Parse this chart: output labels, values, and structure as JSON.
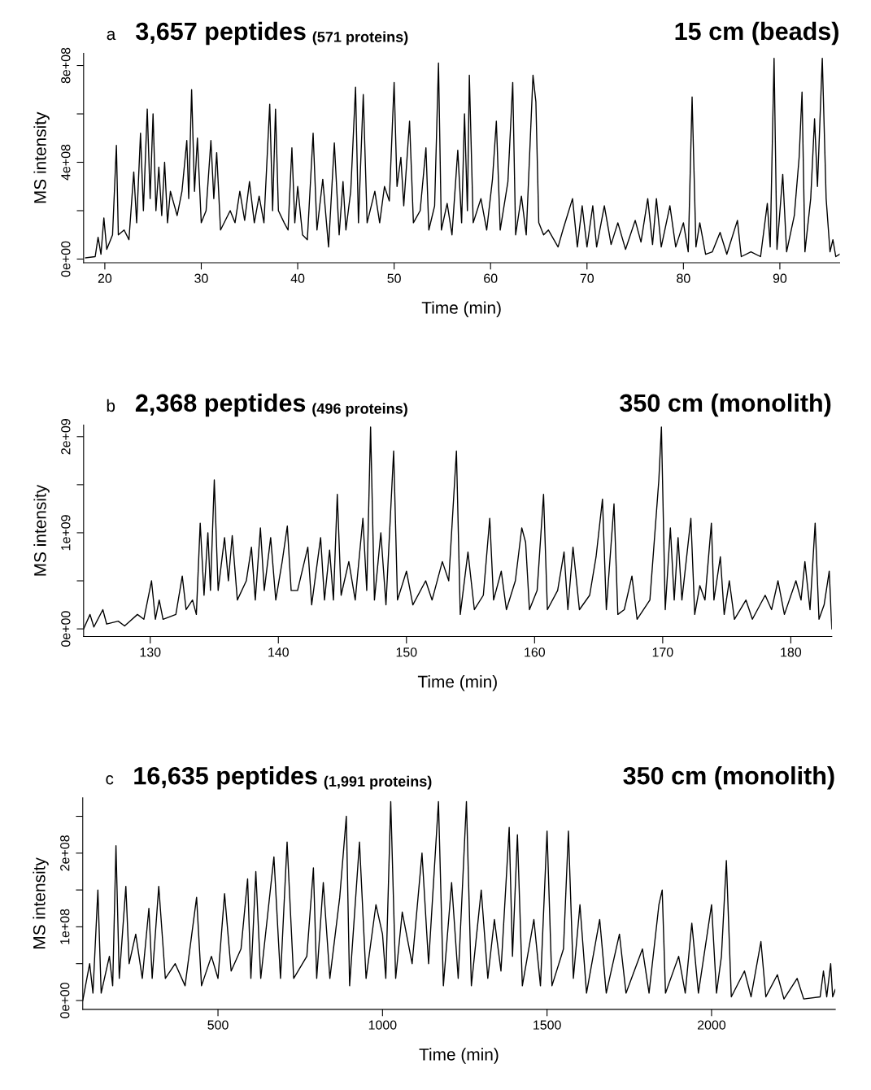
{
  "chart_data": [
    {
      "type": "line",
      "title": "3,657 peptides",
      "subtitle": "(571 proteins)",
      "annotations": [
        "a",
        "15 cm (beads)"
      ],
      "xlabel": "Time (min)",
      "ylabel": "MS intensity",
      "color": "#000000",
      "xlim": [
        17.8,
        96.2
      ],
      "ylim": [
        -15000000.0,
        850000000.0
      ],
      "xticks": [
        20,
        30,
        40,
        50,
        60,
        70,
        80,
        90
      ],
      "yticks": [
        {
          "value": 0,
          "label": "0e+00"
        },
        {
          "value": 200000000.0,
          "label": null
        },
        {
          "value": 400000000.0,
          "label": "4e+08"
        },
        {
          "value": 600000000.0,
          "label": null
        },
        {
          "value": 800000000.0,
          "label": "8e+08"
        }
      ],
      "x": [
        18.0,
        19.0,
        19.3,
        19.6,
        19.9,
        20.2,
        20.8,
        21.2,
        21.4,
        22.0,
        22.5,
        23.0,
        23.3,
        23.7,
        24.0,
        24.4,
        24.7,
        25.0,
        25.3,
        25.6,
        25.9,
        26.2,
        26.5,
        26.8,
        27.5,
        28.0,
        28.5,
        28.7,
        29.0,
        29.3,
        29.6,
        30.0,
        30.5,
        31.0,
        31.3,
        31.6,
        32.0,
        33.0,
        33.5,
        34.0,
        34.5,
        35.0,
        35.5,
        36.0,
        36.5,
        37.1,
        37.4,
        37.7,
        38.0,
        38.6,
        39.0,
        39.4,
        39.7,
        40.0,
        40.5,
        41.0,
        41.6,
        42.0,
        42.6,
        43.2,
        43.8,
        44.3,
        44.7,
        45.0,
        45.5,
        46.0,
        46.3,
        46.8,
        47.2,
        48.0,
        48.5,
        49.0,
        49.5,
        50.0,
        50.3,
        50.7,
        51.0,
        51.6,
        52.0,
        52.7,
        53.3,
        53.6,
        54.2,
        54.6,
        54.9,
        55.5,
        56.0,
        56.6,
        57.0,
        57.3,
        57.6,
        57.8,
        58.2,
        59.0,
        59.6,
        60.2,
        60.6,
        61.0,
        61.8,
        62.3,
        62.6,
        63.2,
        63.7,
        64.4,
        64.7,
        65.0,
        65.5,
        66.0,
        67.0,
        67.5,
        68.5,
        69.0,
        69.5,
        70.0,
        70.6,
        71.0,
        71.8,
        72.5,
        73.2,
        74.0,
        75.0,
        75.6,
        76.3,
        76.8,
        77.2,
        77.7,
        78.6,
        79.2,
        80.0,
        80.5,
        80.9,
        81.3,
        81.7,
        82.3,
        83.0,
        83.8,
        84.5,
        85.6,
        86.0,
        87.0,
        88.0,
        88.7,
        89.0,
        89.4,
        89.7,
        90.3,
        90.7,
        91.5,
        92.0,
        92.3,
        92.6,
        93.2,
        93.6,
        93.9,
        94.4,
        94.8,
        95.2,
        95.5,
        95.8,
        96.2
      ],
      "values": [
        5000000.0,
        10000000.0,
        90000000.0,
        20000000.0,
        170000000.0,
        40000000.0,
        100000000.0,
        470000000.0,
        100000000.0,
        120000000.0,
        80000000.0,
        360000000.0,
        150000000.0,
        520000000.0,
        200000000.0,
        620000000.0,
        250000000.0,
        600000000.0,
        200000000.0,
        380000000.0,
        180000000.0,
        400000000.0,
        150000000.0,
        280000000.0,
        180000000.0,
        280000000.0,
        490000000.0,
        250000000.0,
        700000000.0,
        280000000.0,
        500000000.0,
        150000000.0,
        200000000.0,
        490000000.0,
        250000000.0,
        440000000.0,
        120000000.0,
        200000000.0,
        150000000.0,
        280000000.0,
        160000000.0,
        320000000.0,
        150000000.0,
        260000000.0,
        150000000.0,
        640000000.0,
        200000000.0,
        620000000.0,
        200000000.0,
        150000000.0,
        120000000.0,
        460000000.0,
        150000000.0,
        300000000.0,
        100000000.0,
        80000000.0,
        520000000.0,
        120000000.0,
        330000000.0,
        50000000.0,
        480000000.0,
        100000000.0,
        320000000.0,
        120000000.0,
        280000000.0,
        710000000.0,
        150000000.0,
        680000000.0,
        150000000.0,
        280000000.0,
        150000000.0,
        300000000.0,
        240000000.0,
        730000000.0,
        300000000.0,
        420000000.0,
        220000000.0,
        570000000.0,
        150000000.0,
        200000000.0,
        460000000.0,
        120000000.0,
        220000000.0,
        810000000.0,
        120000000.0,
        230000000.0,
        100000000.0,
        450000000.0,
        150000000.0,
        600000000.0,
        200000000.0,
        760000000.0,
        150000000.0,
        250000000.0,
        120000000.0,
        330000000.0,
        570000000.0,
        120000000.0,
        320000000.0,
        730000000.0,
        100000000.0,
        260000000.0,
        100000000.0,
        760000000.0,
        650000000.0,
        150000000.0,
        100000000.0,
        120000000.0,
        50000000.0,
        120000000.0,
        250000000.0,
        50000000.0,
        220000000.0,
        50000000.0,
        220000000.0,
        50000000.0,
        220000000.0,
        60000000.0,
        150000000.0,
        40000000.0,
        160000000.0,
        70000000.0,
        250000000.0,
        60000000.0,
        250000000.0,
        50000000.0,
        220000000.0,
        50000000.0,
        150000000.0,
        30000000.0,
        670000000.0,
        50000000.0,
        150000000.0,
        20000000.0,
        30000000.0,
        110000000.0,
        20000000.0,
        160000000.0,
        10000000.0,
        30000000.0,
        10000000.0,
        230000000.0,
        50000000.0,
        830000000.0,
        40000000.0,
        350000000.0,
        30000000.0,
        180000000.0,
        420000000.0,
        690000000.0,
        30000000.0,
        250000000.0,
        580000000.0,
        300000000.0,
        830000000.0,
        250000000.0,
        30000000.0,
        80000000.0,
        10000000.0,
        20000000.0
      ]
    },
    {
      "type": "line",
      "title": "2,368 peptides",
      "subtitle": "(496 proteins)",
      "annotations": [
        "b",
        "350 cm (monolith)"
      ],
      "xlabel": "Time (min)",
      "ylabel": "MS intensity",
      "color": "#000000",
      "xlim": [
        124.8,
        183.2
      ],
      "ylim": [
        -80000000.0,
        2120000000.0
      ],
      "xticks": [
        130,
        140,
        150,
        160,
        170,
        180
      ],
      "yticks": [
        {
          "value": 0,
          "label": "0e+00"
        },
        {
          "value": 500000000.0,
          "label": null
        },
        {
          "value": 1000000000.0,
          "label": "1e+09"
        },
        {
          "value": 1500000000.0,
          "label": null
        },
        {
          "value": 2000000000.0,
          "label": "2e+09"
        }
      ],
      "x": [
        124.8,
        125.3,
        125.6,
        126.3,
        126.6,
        127.5,
        128.0,
        129.0,
        129.5,
        130.1,
        130.4,
        130.7,
        131.0,
        132.0,
        132.5,
        132.8,
        133.3,
        133.6,
        133.9,
        134.2,
        134.5,
        134.7,
        135.0,
        135.3,
        135.8,
        136.1,
        136.4,
        136.8,
        137.5,
        137.9,
        138.2,
        138.6,
        138.9,
        139.4,
        139.8,
        140.3,
        140.7,
        141.0,
        141.5,
        142.3,
        142.6,
        143.3,
        143.6,
        144.0,
        144.3,
        144.6,
        144.9,
        145.5,
        146.0,
        146.6,
        146.9,
        147.2,
        147.5,
        148.0,
        148.4,
        149.0,
        149.3,
        150.0,
        150.5,
        151.5,
        152.0,
        152.8,
        153.3,
        153.9,
        154.2,
        154.8,
        155.3,
        156.0,
        156.5,
        156.8,
        157.4,
        157.8,
        158.5,
        159.0,
        159.3,
        159.6,
        160.2,
        160.7,
        161.0,
        161.8,
        162.3,
        162.6,
        163.0,
        163.5,
        164.3,
        164.8,
        165.3,
        165.6,
        166.2,
        166.5,
        167.0,
        167.6,
        168.0,
        169.0,
        169.7,
        169.9,
        170.2,
        170.6,
        170.9,
        171.2,
        171.5,
        172.2,
        172.5,
        172.9,
        173.3,
        173.8,
        174.0,
        174.5,
        174.8,
        175.2,
        175.6,
        176.5,
        177.0,
        178.0,
        178.5,
        179.0,
        179.5,
        180.4,
        180.8,
        181.1,
        181.5,
        181.9,
        182.2,
        182.6,
        183.0,
        183.2
      ],
      "values": [
        0,
        150000000.0,
        20000000.0,
        200000000.0,
        50000000.0,
        80000000.0,
        30000000.0,
        150000000.0,
        100000000.0,
        500000000.0,
        100000000.0,
        300000000.0,
        100000000.0,
        150000000.0,
        550000000.0,
        200000000.0,
        300000000.0,
        150000000.0,
        1100000000.0,
        350000000.0,
        1000000000.0,
        400000000.0,
        1550000000.0,
        400000000.0,
        950000000.0,
        500000000.0,
        970000000.0,
        300000000.0,
        500000000.0,
        850000000.0,
        300000000.0,
        1050000000.0,
        400000000.0,
        950000000.0,
        300000000.0,
        700000000.0,
        1070000000.0,
        400000000.0,
        400000000.0,
        850000000.0,
        250000000.0,
        950000000.0,
        300000000.0,
        820000000.0,
        300000000.0,
        1400000000.0,
        350000000.0,
        700000000.0,
        300000000.0,
        1150000000.0,
        400000000.0,
        2100000000.0,
        300000000.0,
        1000000000.0,
        250000000.0,
        1850000000.0,
        300000000.0,
        600000000.0,
        250000000.0,
        500000000.0,
        300000000.0,
        700000000.0,
        500000000.0,
        1850000000.0,
        150000000.0,
        800000000.0,
        200000000.0,
        350000000.0,
        1150000000.0,
        300000000.0,
        600000000.0,
        200000000.0,
        500000000.0,
        1050000000.0,
        900000000.0,
        200000000.0,
        400000000.0,
        1400000000.0,
        200000000.0,
        400000000.0,
        800000000.0,
        200000000.0,
        850000000.0,
        200000000.0,
        350000000.0,
        750000000.0,
        1350000000.0,
        200000000.0,
        1300000000.0,
        150000000.0,
        200000000.0,
        550000000.0,
        100000000.0,
        300000000.0,
        1550000000.0,
        2100000000.0,
        200000000.0,
        1050000000.0,
        300000000.0,
        950000000.0,
        300000000.0,
        1150000000.0,
        150000000.0,
        450000000.0,
        300000000.0,
        1100000000.0,
        300000000.0,
        750000000.0,
        150000000.0,
        500000000.0,
        100000000.0,
        300000000.0,
        100000000.0,
        350000000.0,
        200000000.0,
        500000000.0,
        150000000.0,
        500000000.0,
        300000000.0,
        700000000.0,
        200000000.0,
        1100000000.0,
        100000000.0,
        250000000.0,
        600000000.0,
        0
      ]
    },
    {
      "type": "line",
      "title": "16,635 peptides",
      "subtitle": "(1,991 proteins)",
      "annotations": [
        "c",
        "350 cm (monolith)"
      ],
      "xlabel": "Time (min)",
      "ylabel": "MS intensity",
      "color": "#000000",
      "xlim": [
        89,
        2376
      ],
      "ylim": [
        -12000000.0,
        275000000.0
      ],
      "xticks": [
        500,
        1000,
        1500,
        2000
      ],
      "yticks": [
        {
          "value": 0,
          "label": "0e+00"
        },
        {
          "value": 50000000.0,
          "label": null
        },
        {
          "value": 100000000.0,
          "label": "1e+08"
        },
        {
          "value": 150000000.0,
          "label": null
        },
        {
          "value": 200000000.0,
          "label": "2e+08"
        },
        {
          "value": 250000000.0,
          "label": null
        }
      ],
      "x": [
        89,
        110,
        120,
        135,
        145,
        170,
        180,
        190,
        200,
        220,
        230,
        250,
        270,
        290,
        300,
        320,
        340,
        370,
        400,
        435,
        450,
        480,
        500,
        520,
        540,
        570,
        590,
        600,
        615,
        630,
        670,
        690,
        710,
        730,
        770,
        790,
        800,
        820,
        840,
        870,
        890,
        900,
        930,
        950,
        980,
        1000,
        1010,
        1025,
        1040,
        1060,
        1090,
        1120,
        1140,
        1170,
        1185,
        1210,
        1230,
        1255,
        1270,
        1300,
        1320,
        1340,
        1360,
        1385,
        1395,
        1410,
        1425,
        1460,
        1480,
        1500,
        1515,
        1550,
        1565,
        1580,
        1600,
        1620,
        1660,
        1680,
        1720,
        1740,
        1790,
        1810,
        1840,
        1850,
        1860,
        1900,
        1920,
        1940,
        1960,
        2000,
        2015,
        2030,
        2045,
        2060,
        2100,
        2120,
        2150,
        2165,
        2200,
        2220,
        2260,
        2280,
        2330,
        2340,
        2350,
        2362,
        2368,
        2376
      ],
      "values": [
        0,
        50000000.0,
        10000000.0,
        150000000.0,
        10000000.0,
        60000000.0,
        20000000.0,
        210000000.0,
        30000000.0,
        155000000.0,
        50000000.0,
        90000000.0,
        30000000.0,
        125000000.0,
        30000000.0,
        155000000.0,
        30000000.0,
        50000000.0,
        20000000.0,
        140000000.0,
        20000000.0,
        60000000.0,
        30000000.0,
        145000000.0,
        40000000.0,
        70000000.0,
        165000000.0,
        30000000.0,
        175000000.0,
        30000000.0,
        195000000.0,
        30000000.0,
        215000000.0,
        30000000.0,
        60000000.0,
        180000000.0,
        30000000.0,
        160000000.0,
        30000000.0,
        140000000.0,
        250000000.0,
        20000000.0,
        215000000.0,
        30000000.0,
        130000000.0,
        90000000.0,
        30000000.0,
        270000000.0,
        30000000.0,
        120000000.0,
        50000000.0,
        200000000.0,
        50000000.0,
        270000000.0,
        20000000.0,
        160000000.0,
        30000000.0,
        270000000.0,
        20000000.0,
        150000000.0,
        30000000.0,
        110000000.0,
        40000000.0,
        235000000.0,
        60000000.0,
        225000000.0,
        20000000.0,
        110000000.0,
        20000000.0,
        230000000.0,
        20000000.0,
        70000000.0,
        230000000.0,
        30000000.0,
        130000000.0,
        10000000.0,
        110000000.0,
        10000000.0,
        90000000.0,
        10000000.0,
        70000000.0,
        10000000.0,
        130000000.0,
        150000000.0,
        10000000.0,
        60000000.0,
        10000000.0,
        105000000.0,
        10000000.0,
        130000000.0,
        10000000.0,
        60000000.0,
        190000000.0,
        5000000.0,
        40000000.0,
        5000000.0,
        80000000.0,
        5000000.0,
        35000000.0,
        2000000.0,
        30000000.0,
        2000000.0,
        5000000.0,
        40000000.0,
        5000000.0,
        50000000.0,
        5000000.0,
        15000000.0
      ]
    }
  ]
}
